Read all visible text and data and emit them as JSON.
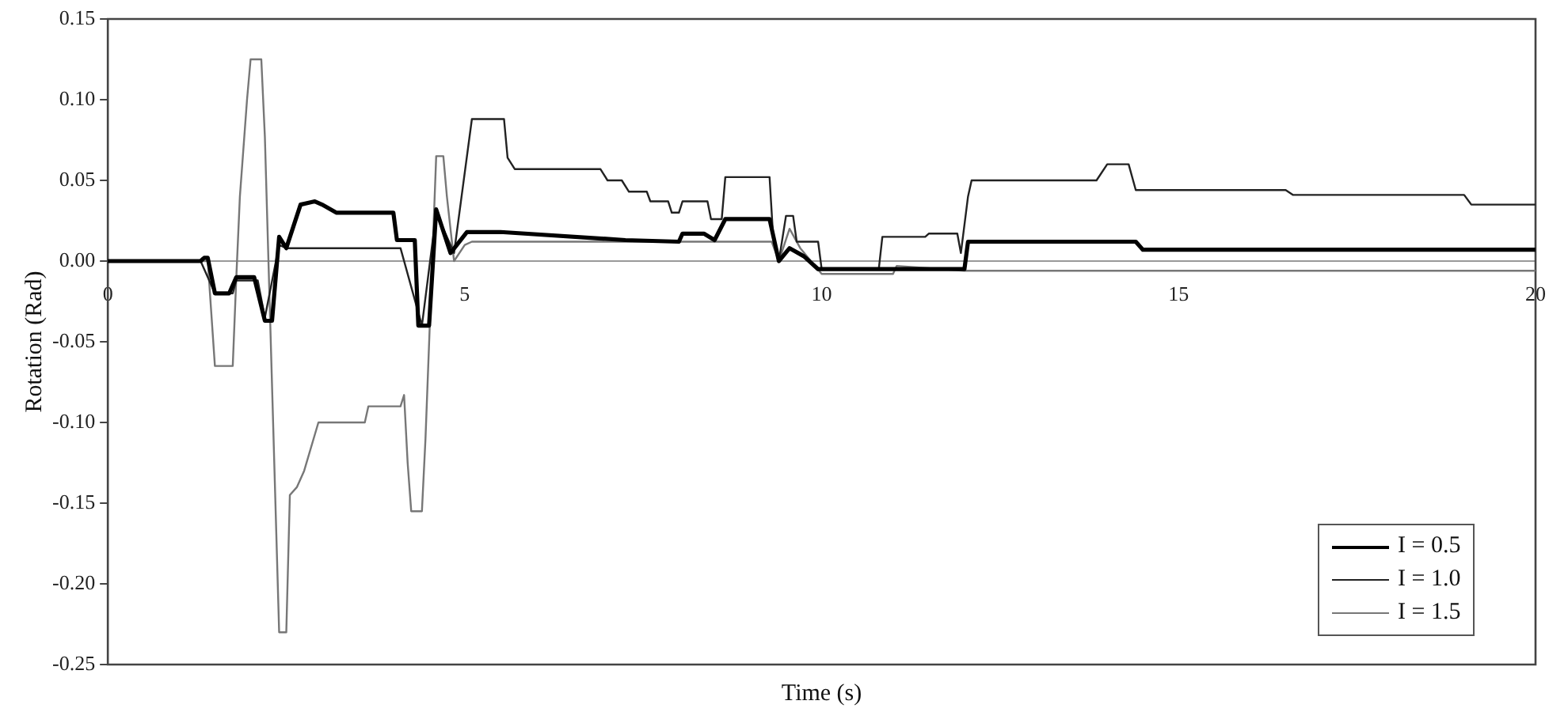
{
  "chart_data": {
    "type": "line",
    "xlabel": "Time (s)",
    "ylabel": "Rotation (Rad)",
    "xlim": [
      0,
      20
    ],
    "xticks": [
      0,
      5,
      10,
      15,
      20
    ],
    "ylim": [
      -0.25,
      0.15
    ],
    "yticks": [
      {
        "value": 0.15,
        "label": "0.15"
      },
      {
        "value": 0.1,
        "label": "0.10"
      },
      {
        "value": 0.05,
        "label": "0.05"
      },
      {
        "value": 0,
        "label": "0.00"
      },
      {
        "value": -0.05,
        "label": "-0.05"
      },
      {
        "value": -0.1,
        "label": "-0.10"
      },
      {
        "value": -0.15,
        "label": "-0.15"
      },
      {
        "value": -0.2,
        "label": "-0.20"
      },
      {
        "value": -0.25,
        "label": "-0.25"
      }
    ],
    "grid": false,
    "legend": "bottom right",
    "marker": "none",
    "line_style": "solid",
    "series": [
      {
        "name": "I = 0.5",
        "color": "#000000",
        "x": [
          0,
          1.3,
          1.35,
          1.4,
          1.5,
          1.7,
          1.8,
          2.05,
          2.2,
          2.3,
          2.4,
          2.5,
          2.7,
          2.9,
          3.0,
          3.2,
          4.0,
          4.05,
          4.3,
          4.35,
          4.5,
          4.6,
          4.8,
          5.03,
          5.5,
          7.25,
          8.0,
          8.05,
          8.35,
          8.5,
          8.65,
          9.27,
          9.4,
          9.55,
          9.75,
          9.95,
          12.0,
          12.05,
          14.4,
          14.5,
          20
        ],
        "values": [
          0,
          0,
          0.002,
          0.002,
          -0.02,
          -0.02,
          -0.01,
          -0.01,
          -0.037,
          -0.037,
          0.015,
          0.008,
          0.035,
          0.037,
          0.035,
          0.03,
          0.03,
          0.013,
          0.013,
          -0.04,
          -0.04,
          0.032,
          0.005,
          0.018,
          0.018,
          0.013,
          0.012,
          0.017,
          0.017,
          0.013,
          0.026,
          0.026,
          0,
          0.008,
          0.003,
          -0.005,
          -0.005,
          0.012,
          0.012,
          0.007,
          0.007
        ]
      },
      {
        "name": "I = 1.0",
        "color": "#222222",
        "x": [
          0,
          1.3,
          1.5,
          1.75,
          1.8,
          2.1,
          2.2,
          2.4,
          2.5,
          4.1,
          4.4,
          4.6,
          4.85,
          5.1,
          5.55,
          5.6,
          5.7,
          6.9,
          7.0,
          7.2,
          7.3,
          7.55,
          7.6,
          7.85,
          7.9,
          8.0,
          8.05,
          8.4,
          8.45,
          8.6,
          8.65,
          9.27,
          9.32,
          9.4,
          9.5,
          9.6,
          9.65,
          9.95,
          10.0,
          10.8,
          10.85,
          11.45,
          11.5,
          11.9,
          11.95,
          12.05,
          12.1,
          13.85,
          14.0,
          14.3,
          14.4,
          16.5,
          16.6,
          19.0,
          19.1,
          20
        ],
        "values": [
          0,
          0,
          -0.02,
          -0.02,
          -0.012,
          -0.012,
          -0.035,
          0.01,
          0.008,
          0.008,
          -0.04,
          0.03,
          0.005,
          0.088,
          0.088,
          0.064,
          0.057,
          0.057,
          0.05,
          0.05,
          0.043,
          0.043,
          0.037,
          0.037,
          0.03,
          0.03,
          0.037,
          0.037,
          0.026,
          0.026,
          0.052,
          0.052,
          0.015,
          0,
          0.028,
          0.028,
          0.012,
          0.012,
          -0.005,
          -0.005,
          0.015,
          0.015,
          0.017,
          0.017,
          0.005,
          0.04,
          0.05,
          0.05,
          0.06,
          0.06,
          0.044,
          0.044,
          0.041,
          0.041,
          0.035,
          0.035
        ]
      },
      {
        "name": "I = 1.5",
        "color": "#777777",
        "x": [
          0,
          1.4,
          1.5,
          1.75,
          1.8,
          1.85,
          1.95,
          2.0,
          2.15,
          2.2,
          2.4,
          2.5,
          2.55,
          2.65,
          2.75,
          2.95,
          3.6,
          3.65,
          4.1,
          4.15,
          4.2,
          4.25,
          4.4,
          4.45,
          4.6,
          4.7,
          4.75,
          4.85,
          5.0,
          5.1,
          9.3,
          9.4,
          9.55,
          9.7,
          10.0,
          11.0,
          11.05,
          12.0,
          20
        ],
        "values": [
          0,
          0,
          -0.065,
          -0.065,
          -0.01,
          0.04,
          0.1,
          0.125,
          0.125,
          0.077,
          -0.23,
          -0.23,
          -0.145,
          -0.14,
          -0.13,
          -0.1,
          -0.1,
          -0.09,
          -0.09,
          -0.083,
          -0.125,
          -0.155,
          -0.155,
          -0.11,
          0.065,
          0.065,
          0.04,
          0,
          0.01,
          0.012,
          0.012,
          0,
          0.02,
          0.008,
          -0.008,
          -0.008,
          -0.003,
          -0.006,
          -0.006
        ]
      }
    ]
  }
}
